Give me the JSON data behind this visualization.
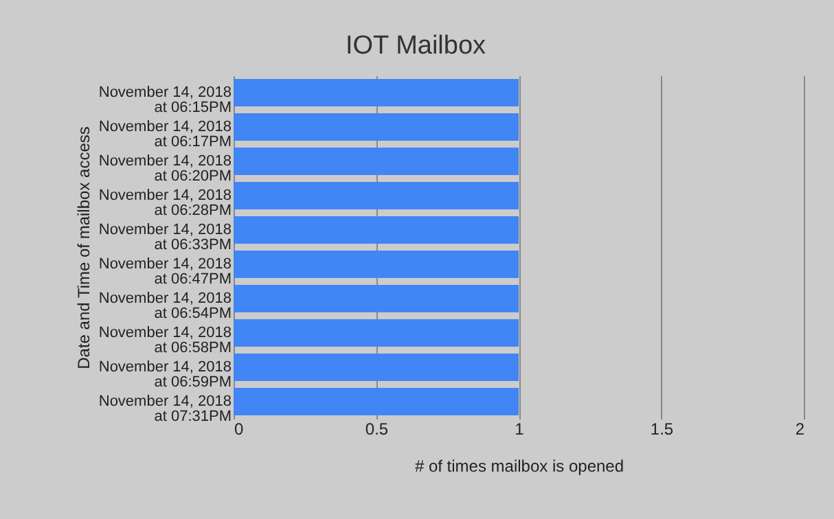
{
  "chart_data": {
    "type": "bar",
    "orientation": "horizontal",
    "title": "IOT Mailbox",
    "xlabel": "# of times mailbox is opened",
    "ylabel": "Date and Time of mailbox access",
    "categories": [
      "November 14, 2018\nat 06:15PM",
      "November 14, 2018\nat 06:17PM",
      "November 14, 2018\nat 06:20PM",
      "November 14, 2018\nat 06:28PM",
      "November 14, 2018\nat 06:33PM",
      "November 14, 2018\nat 06:47PM",
      "November 14, 2018\nat 06:54PM",
      "November 14, 2018\nat 06:58PM",
      "November 14, 2018\nat 06:59PM",
      "November 14, 2018\nat 07:31PM"
    ],
    "values": [
      1,
      1,
      1,
      1,
      1,
      1,
      1,
      1,
      1,
      1
    ],
    "color": "#4285f4",
    "xlim": [
      0,
      2
    ],
    "xticks": [
      0,
      0.5,
      1,
      1.5,
      2
    ],
    "grid": "x"
  }
}
